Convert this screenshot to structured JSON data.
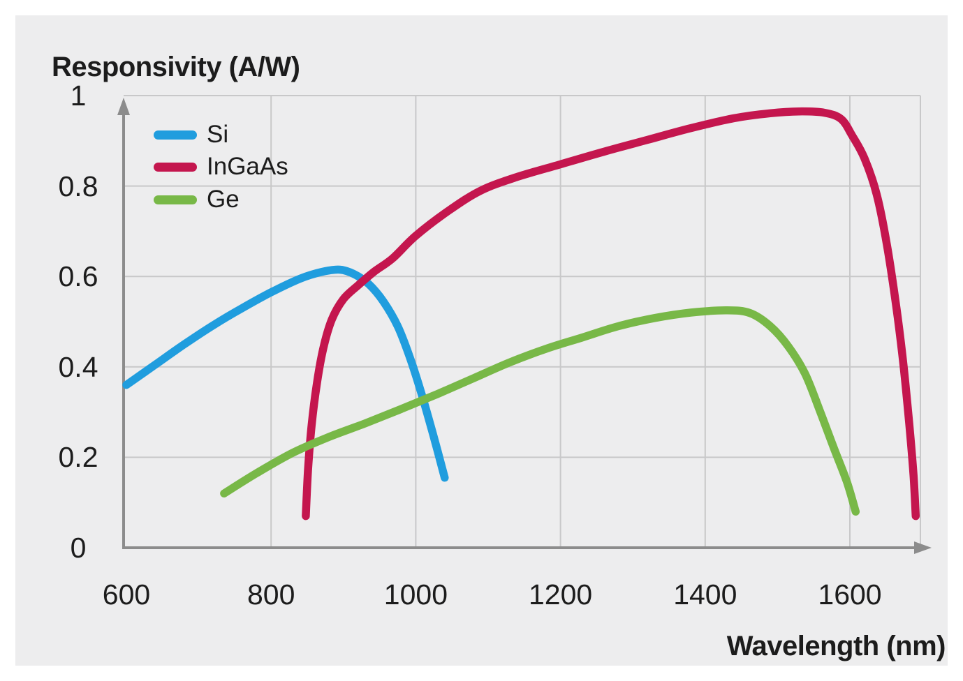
{
  "title": "Responsivity (A/W)",
  "x_axis_title": "Wavelength (nm)",
  "colors": {
    "background": "#FFFFFF",
    "panel": "#EDEDEE",
    "grid": "#C8C8C9",
    "axis": "#8C8C8C",
    "text": "#1C1C1C",
    "si": "#209DDE",
    "ingaas": "#C4164E",
    "ge": "#78B847"
  },
  "chart_data": {
    "type": "line",
    "title": "Responsivity (A/W)",
    "xlabel": "Wavelength (nm)",
    "ylabel": "Responsivity (A/W)",
    "xlim": [
      600,
      1697
    ],
    "ylim": [
      0,
      1
    ],
    "grid": true,
    "legend_position": "top-left",
    "x_ticks": [
      {
        "value": 600,
        "label": "600"
      },
      {
        "value": 800,
        "label": "800"
      },
      {
        "value": 1000,
        "label": "1000"
      },
      {
        "value": 1200,
        "label": "1200"
      },
      {
        "value": 1400,
        "label": "1400"
      },
      {
        "value": 1600,
        "label": "1600"
      }
    ],
    "y_ticks": [
      {
        "value": 0,
        "label": "0"
      },
      {
        "value": 0.2,
        "label": "0.2"
      },
      {
        "value": 0.4,
        "label": "0.4"
      },
      {
        "value": 0.6,
        "label": "0.6"
      },
      {
        "value": 0.8,
        "label": "0.8"
      },
      {
        "value": 1,
        "label": "1"
      }
    ],
    "series": [
      {
        "name": "Si",
        "color": "#209DDE",
        "points": [
          [
            600,
            0.36
          ],
          [
            640,
            0.405
          ],
          [
            680,
            0.45
          ],
          [
            720,
            0.492
          ],
          [
            760,
            0.53
          ],
          [
            800,
            0.565
          ],
          [
            840,
            0.595
          ],
          [
            870,
            0.61
          ],
          [
            895,
            0.615
          ],
          [
            915,
            0.605
          ],
          [
            935,
            0.583
          ],
          [
            955,
            0.545
          ],
          [
            975,
            0.49
          ],
          [
            992,
            0.42
          ],
          [
            1008,
            0.34
          ],
          [
            1024,
            0.25
          ],
          [
            1040,
            0.155
          ]
        ]
      },
      {
        "name": "InGaAs",
        "color": "#C4164E",
        "points": [
          [
            848,
            0.07
          ],
          [
            851,
            0.17
          ],
          [
            856,
            0.27
          ],
          [
            863,
            0.36
          ],
          [
            872,
            0.44
          ],
          [
            884,
            0.505
          ],
          [
            900,
            0.55
          ],
          [
            920,
            0.58
          ],
          [
            942,
            0.61
          ],
          [
            968,
            0.64
          ],
          [
            1000,
            0.69
          ],
          [
            1045,
            0.745
          ],
          [
            1090,
            0.79
          ],
          [
            1140,
            0.82
          ],
          [
            1200,
            0.848
          ],
          [
            1260,
            0.876
          ],
          [
            1320,
            0.902
          ],
          [
            1380,
            0.928
          ],
          [
            1440,
            0.95
          ],
          [
            1490,
            0.961
          ],
          [
            1530,
            0.965
          ],
          [
            1565,
            0.962
          ],
          [
            1588,
            0.948
          ],
          [
            1603,
            0.912
          ],
          [
            1620,
            0.862
          ],
          [
            1637,
            0.782
          ],
          [
            1651,
            0.672
          ],
          [
            1664,
            0.535
          ],
          [
            1674,
            0.405
          ],
          [
            1682,
            0.275
          ],
          [
            1688,
            0.16
          ],
          [
            1691,
            0.07
          ]
        ]
      },
      {
        "name": "Ge",
        "color": "#78B847",
        "points": [
          [
            735,
            0.12
          ],
          [
            780,
            0.165
          ],
          [
            830,
            0.21
          ],
          [
            880,
            0.245
          ],
          [
            930,
            0.275
          ],
          [
            980,
            0.307
          ],
          [
            1030,
            0.34
          ],
          [
            1080,
            0.375
          ],
          [
            1130,
            0.41
          ],
          [
            1180,
            0.44
          ],
          [
            1230,
            0.465
          ],
          [
            1280,
            0.49
          ],
          [
            1330,
            0.508
          ],
          [
            1380,
            0.52
          ],
          [
            1430,
            0.525
          ],
          [
            1462,
            0.519
          ],
          [
            1490,
            0.49
          ],
          [
            1515,
            0.445
          ],
          [
            1538,
            0.385
          ],
          [
            1558,
            0.305
          ],
          [
            1578,
            0.22
          ],
          [
            1596,
            0.145
          ],
          [
            1608,
            0.08
          ]
        ]
      }
    ]
  }
}
